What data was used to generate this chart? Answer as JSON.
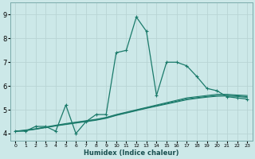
{
  "xlabel": "Humidex (Indice chaleur)",
  "bg_color": "#cce8e8",
  "grid_color": "#b8d4d4",
  "line_color": "#1a7a6a",
  "xlim": [
    -0.5,
    23.5
  ],
  "ylim": [
    3.7,
    9.5
  ],
  "xticks": [
    0,
    1,
    2,
    3,
    4,
    5,
    6,
    7,
    8,
    9,
    10,
    11,
    12,
    13,
    14,
    15,
    16,
    17,
    18,
    19,
    20,
    21,
    22,
    23
  ],
  "yticks": [
    4,
    5,
    6,
    7,
    8,
    9
  ],
  "series1_x": [
    0,
    1,
    2,
    3,
    4,
    5,
    6,
    7,
    8,
    9,
    10,
    11,
    12,
    13,
    14,
    15,
    16,
    17,
    18,
    19,
    20,
    21,
    22,
    23
  ],
  "series1_y": [
    4.1,
    4.1,
    4.3,
    4.3,
    4.1,
    5.2,
    4.0,
    4.5,
    4.8,
    4.8,
    7.4,
    7.5,
    8.9,
    8.3,
    5.6,
    7.0,
    7.0,
    6.85,
    6.4,
    5.9,
    5.8,
    5.55,
    5.5,
    5.45
  ],
  "series2_x": [
    0,
    1,
    2,
    3,
    4,
    5,
    6,
    7,
    8,
    9,
    10,
    11,
    12,
    13,
    14,
    15,
    16,
    17,
    18,
    19,
    20,
    21,
    22,
    23
  ],
  "series2_y": [
    4.1,
    4.15,
    4.2,
    4.28,
    4.35,
    4.42,
    4.48,
    4.54,
    4.6,
    4.68,
    4.8,
    4.9,
    5.0,
    5.1,
    5.2,
    5.3,
    5.4,
    5.5,
    5.55,
    5.6,
    5.65,
    5.65,
    5.62,
    5.6
  ],
  "series3_x": [
    0,
    1,
    2,
    3,
    4,
    5,
    6,
    7,
    8,
    9,
    10,
    11,
    12,
    13,
    14,
    15,
    16,
    17,
    18,
    19,
    20,
    21,
    22,
    23
  ],
  "series3_y": [
    4.1,
    4.12,
    4.18,
    4.25,
    4.32,
    4.38,
    4.44,
    4.5,
    4.56,
    4.64,
    4.76,
    4.86,
    4.96,
    5.06,
    5.15,
    5.24,
    5.33,
    5.42,
    5.48,
    5.53,
    5.57,
    5.58,
    5.56,
    5.52
  ],
  "series4_x": [
    0,
    1,
    2,
    3,
    4,
    5,
    6,
    7,
    8,
    9,
    10,
    11,
    12,
    13,
    14,
    15,
    16,
    17,
    18,
    19,
    20,
    21,
    22,
    23
  ],
  "series4_y": [
    4.1,
    4.13,
    4.19,
    4.26,
    4.33,
    4.4,
    4.46,
    4.52,
    4.58,
    4.66,
    4.78,
    4.88,
    4.98,
    5.08,
    5.17,
    5.27,
    5.36,
    5.46,
    5.51,
    5.56,
    5.6,
    5.61,
    5.59,
    5.55
  ]
}
